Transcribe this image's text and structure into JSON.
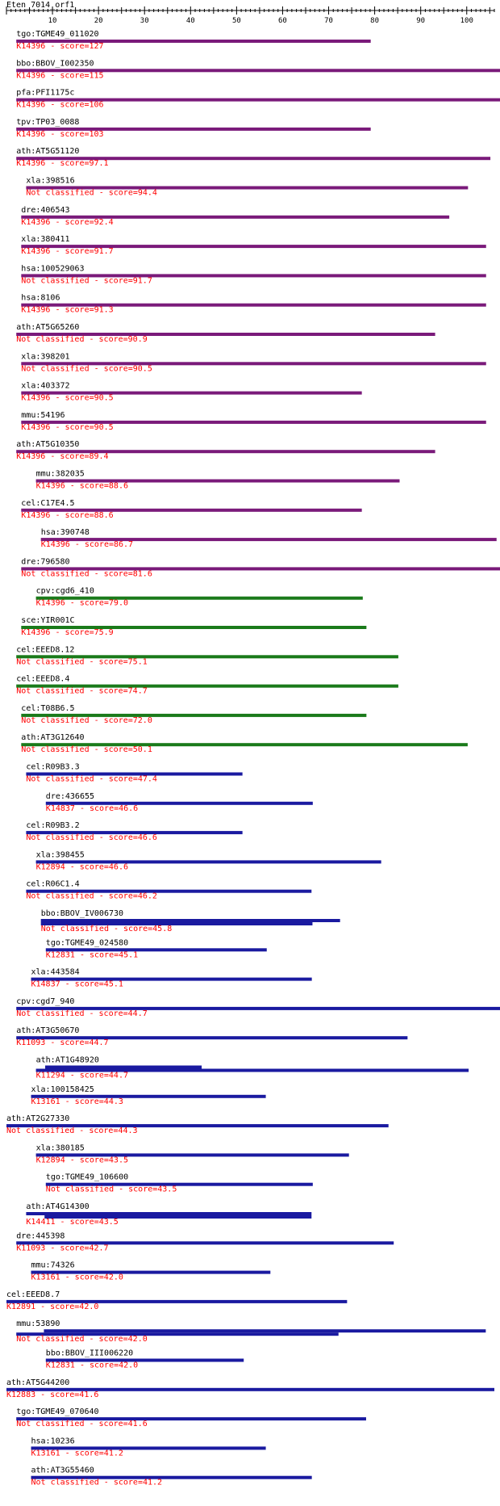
{
  "title": "Eten_7014_orf1",
  "axis": {
    "min": 0,
    "max": 106,
    "ticks": [
      10,
      20,
      30,
      40,
      50,
      60,
      70,
      80,
      90,
      100
    ]
  },
  "colors": {
    "purple": "#7a1a7a",
    "green": "#1a7a1a",
    "blue": "#1a1aa0",
    "label": "#000000",
    "score": "#ff0000"
  },
  "hits": [
    {
      "name": "tgo:TGME49_011020",
      "score_text": "K14396 - score=127",
      "indent": 2,
      "color": "purple",
      "bars": [
        [
          0,
          77
        ]
      ]
    },
    {
      "name": "bbo:BBOV_I002350",
      "score_text": "K14396 - score=115",
      "indent": 2,
      "color": "purple",
      "bars": [
        [
          0,
          106
        ]
      ]
    },
    {
      "name": "pfa:PFI1175c",
      "score_text": "K14396 - score=106",
      "indent": 2,
      "color": "purple",
      "bars": [
        [
          0,
          106
        ]
      ]
    },
    {
      "name": "tpv:TP03_0088",
      "score_text": "K14396 - score=103",
      "indent": 2,
      "color": "purple",
      "bars": [
        [
          0,
          77
        ]
      ]
    },
    {
      "name": "ath:AT5G51120",
      "score_text": "K14396 - score=97.1",
      "indent": 2,
      "color": "purple",
      "bars": [
        [
          0,
          103
        ]
      ]
    },
    {
      "name": "xla:398516",
      "score_text": "Not classified - score=94.4",
      "indent": 4,
      "color": "purple",
      "bars": [
        [
          0,
          96
        ]
      ]
    },
    {
      "name": "dre:406543",
      "score_text": "K14396 - score=92.4",
      "indent": 3,
      "color": "purple",
      "bars": [
        [
          0,
          93
        ]
      ]
    },
    {
      "name": "xla:380411",
      "score_text": "K14396 - score=91.7",
      "indent": 3,
      "color": "purple",
      "bars": [
        [
          0,
          101
        ]
      ]
    },
    {
      "name": "hsa:100529063",
      "score_text": "Not classified - score=91.7",
      "indent": 3,
      "color": "purple",
      "bars": [
        [
          0,
          101
        ]
      ]
    },
    {
      "name": "hsa:8106",
      "score_text": "K14396 - score=91.3",
      "indent": 3,
      "color": "purple",
      "bars": [
        [
          0,
          101
        ]
      ]
    },
    {
      "name": "ath:AT5G65260",
      "score_text": "Not classified - score=90.9",
      "indent": 2,
      "color": "purple",
      "bars": [
        [
          0,
          91
        ]
      ]
    },
    {
      "name": "xla:398201",
      "score_text": "Not classified - score=90.5",
      "indent": 3,
      "color": "purple",
      "bars": [
        [
          0,
          101
        ]
      ]
    },
    {
      "name": "xla:403372",
      "score_text": "K14396 - score=90.5",
      "indent": 3,
      "color": "purple",
      "bars": [
        [
          0,
          74
        ]
      ]
    },
    {
      "name": "mmu:54196",
      "score_text": "K14396 - score=90.5",
      "indent": 3,
      "color": "purple",
      "bars": [
        [
          0,
          101
        ]
      ]
    },
    {
      "name": "ath:AT5G10350",
      "score_text": "K14396 - score=89.4",
      "indent": 2,
      "color": "purple",
      "bars": [
        [
          0,
          91
        ]
      ]
    },
    {
      "name": "mmu:382035",
      "score_text": "K14396 - score=88.6",
      "indent": 6,
      "color": "purple",
      "bars": [
        [
          0,
          79
        ]
      ]
    },
    {
      "name": "cel:C17E4.5",
      "score_text": "K14396 - score=88.6",
      "indent": 3,
      "color": "purple",
      "bars": [
        [
          0,
          74
        ]
      ]
    },
    {
      "name": "hsa:390748",
      "score_text": "K14396 - score=86.7",
      "indent": 7,
      "color": "purple",
      "bars": [
        [
          0,
          99
        ]
      ]
    },
    {
      "name": "dre:796580",
      "score_text": "Not classified - score=81.6",
      "indent": 3,
      "color": "purple",
      "bars": [
        [
          0,
          105
        ]
      ]
    },
    {
      "name": "cpv:cgd6_410",
      "score_text": "K14396 - score=79.0",
      "indent": 6,
      "color": "green",
      "bars": [
        [
          0,
          71
        ]
      ]
    },
    {
      "name": "sce:YIR001C",
      "score_text": "K14396 - score=75.9",
      "indent": 3,
      "color": "green",
      "bars": [
        [
          0,
          75
        ]
      ]
    },
    {
      "name": "cel:EEED8.12",
      "score_text": "Not classified - score=75.1",
      "indent": 2,
      "color": "green",
      "bars": [
        [
          0,
          83
        ]
      ]
    },
    {
      "name": "cel:EEED8.4",
      "score_text": "Not classified - score=74.7",
      "indent": 2,
      "color": "green",
      "bars": [
        [
          0,
          83
        ]
      ]
    },
    {
      "name": "cel:T08B6.5",
      "score_text": "Not classified - score=72.0",
      "indent": 3,
      "color": "green",
      "bars": [
        [
          0,
          75
        ]
      ]
    },
    {
      "name": "ath:AT3G12640",
      "score_text": "Not classified - score=50.1",
      "indent": 3,
      "color": "green",
      "bars": [
        [
          0,
          97
        ]
      ]
    },
    {
      "name": "cel:R09B3.3",
      "score_text": "Not classified - score=47.4",
      "indent": 4,
      "color": "blue",
      "bars": [
        [
          0,
          47
        ]
      ]
    },
    {
      "name": "dre:436655",
      "score_text": "K14837 - score=46.6",
      "indent": 8,
      "color": "blue",
      "bars": [
        [
          0,
          58
        ]
      ]
    },
    {
      "name": "cel:R09B3.2",
      "score_text": "Not classified - score=46.6",
      "indent": 4,
      "color": "blue",
      "bars": [
        [
          0,
          47
        ]
      ]
    },
    {
      "name": "xla:398455",
      "score_text": "K12894 - score=46.6",
      "indent": 6,
      "color": "blue",
      "bars": [
        [
          0,
          75
        ]
      ]
    },
    {
      "name": "cel:R06C1.4",
      "score_text": "Not classified - score=46.2",
      "indent": 4,
      "color": "blue",
      "bars": [
        [
          0,
          62
        ]
      ]
    },
    {
      "name": "bbo:BBOV_IV006730",
      "score_text": "Not classified - score=45.8",
      "indent": 7,
      "color": "blue",
      "bars": [
        [
          0,
          65
        ],
        [
          0,
          59
        ]
      ]
    },
    {
      "name": "tgo:TGME49_024580",
      "score_text": "K12831 - score=45.1",
      "indent": 8,
      "color": "blue",
      "bars": [
        [
          0,
          48
        ]
      ]
    },
    {
      "name": "xla:443584",
      "score_text": "K14837 - score=45.1",
      "indent": 5,
      "color": "blue",
      "bars": [
        [
          0,
          61
        ]
      ]
    },
    {
      "name": "cpv:cgd7_940",
      "score_text": "Not classified - score=44.7",
      "indent": 2,
      "color": "blue",
      "bars": [
        [
          0,
          106
        ]
      ]
    },
    {
      "name": "ath:AT3G50670",
      "score_text": "K11093 - score=44.7",
      "indent": 2,
      "color": "blue",
      "bars": [
        [
          0,
          85
        ]
      ]
    },
    {
      "name": "ath:AT1G48920",
      "score_text": "K11294 - score=44.7",
      "indent": 6,
      "color": "blue",
      "bars": [
        [
          2,
          36
        ],
        [
          0,
          94
        ]
      ]
    },
    {
      "name": "xla:100158425",
      "score_text": "K13161 - score=44.3",
      "indent": 5,
      "color": "blue",
      "bars": [
        [
          0,
          51
        ]
      ]
    },
    {
      "name": "ath:AT2G27330",
      "score_text": "Not classified - score=44.3",
      "indent": 0,
      "color": "blue",
      "bars": [
        [
          0,
          83
        ]
      ]
    },
    {
      "name": "xla:380185",
      "score_text": "K12894 - score=43.5",
      "indent": 6,
      "color": "blue",
      "bars": [
        [
          0,
          68
        ]
      ]
    },
    {
      "name": "tgo:TGME49_106600",
      "score_text": "Not classified - score=43.5",
      "indent": 8,
      "color": "blue",
      "bars": [
        [
          0,
          58
        ]
      ]
    },
    {
      "name": "ath:AT4G14300",
      "score_text": "K14411 - score=43.5",
      "indent": 4,
      "color": "blue",
      "bars": [
        [
          0,
          62
        ],
        [
          4,
          62
        ]
      ]
    },
    {
      "name": "dre:445398",
      "score_text": "K11093 - score=42.7",
      "indent": 2,
      "color": "blue",
      "bars": [
        [
          0,
          82
        ]
      ]
    },
    {
      "name": "mmu:74326",
      "score_text": "K13161 - score=42.0",
      "indent": 5,
      "color": "blue",
      "bars": [
        [
          0,
          52
        ]
      ]
    },
    {
      "name": "cel:EEED8.7",
      "score_text": "K12891 - score=42.0",
      "indent": 0,
      "color": "blue",
      "bars": [
        [
          0,
          74
        ]
      ]
    },
    {
      "name": "mmu:53890",
      "score_text": "Not classified - score=42.0",
      "indent": 2,
      "color": "blue",
      "bars": [
        [
          6,
          102
        ],
        [
          0,
          70
        ]
      ]
    },
    {
      "name": "bbo:BBOV_III006220",
      "score_text": "K12831 - score=42.0",
      "indent": 8,
      "color": "blue",
      "bars": [
        [
          0,
          43
        ]
      ]
    },
    {
      "name": "ath:AT5G44200",
      "score_text": "K12883 - score=41.6",
      "indent": 0,
      "color": "blue",
      "bars": [
        [
          0,
          106
        ]
      ]
    },
    {
      "name": "tgo:TGME49_070640",
      "score_text": "Not classified - score=41.6",
      "indent": 2,
      "color": "blue",
      "bars": [
        [
          0,
          76
        ]
      ]
    },
    {
      "name": "hsa:10236",
      "score_text": "K13161 - score=41.2",
      "indent": 5,
      "color": "blue",
      "bars": [
        [
          0,
          51
        ]
      ]
    },
    {
      "name": "ath:AT3G55460",
      "score_text": "Not classified - score=41.2",
      "indent": 5,
      "color": "blue",
      "bars": [
        [
          0,
          61
        ]
      ]
    }
  ]
}
